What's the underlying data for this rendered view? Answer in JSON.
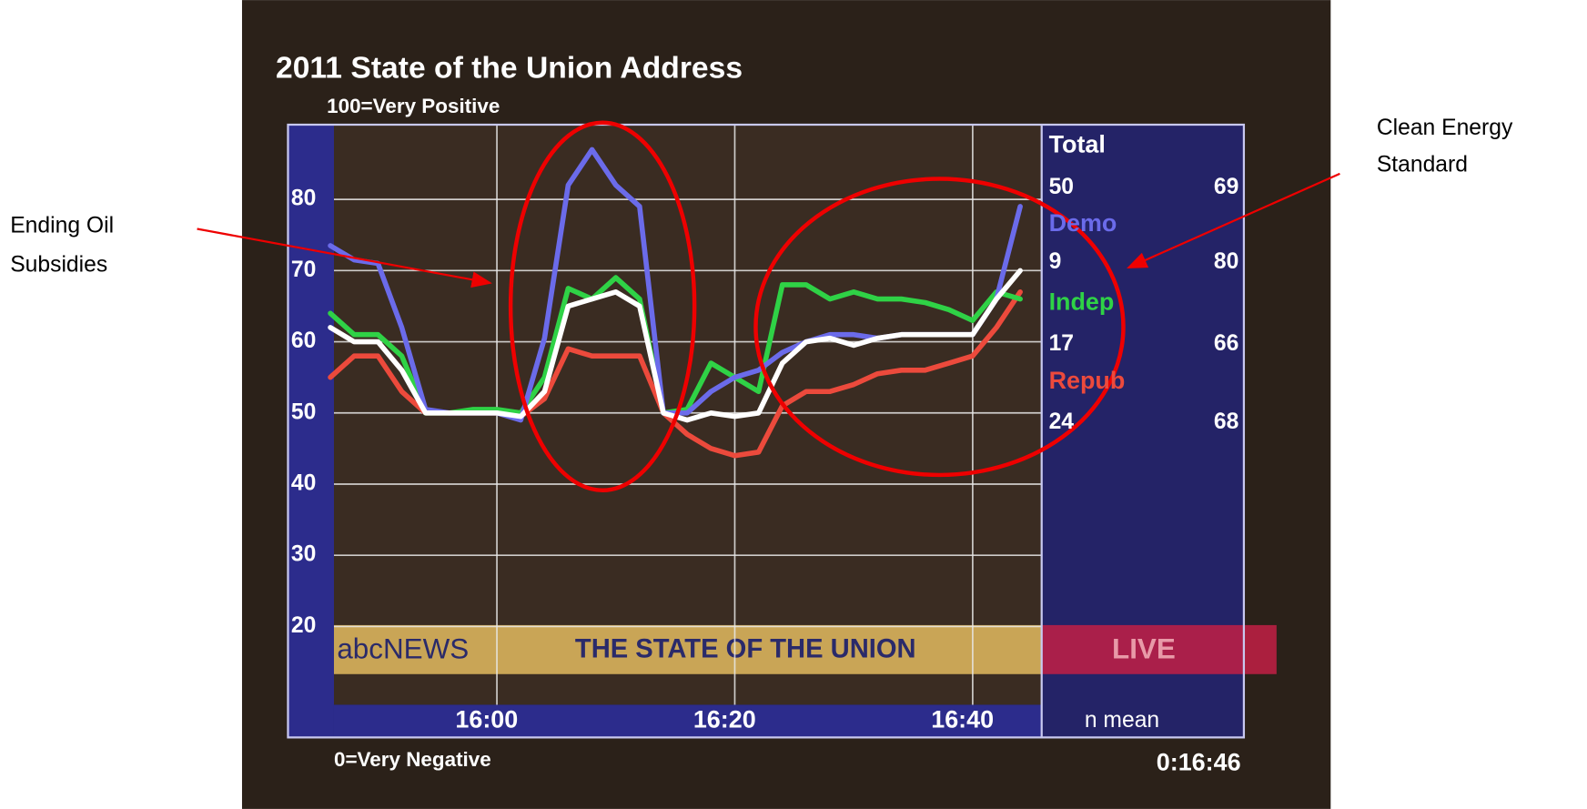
{
  "chart_data": {
    "type": "line",
    "title": "2011 State of the Union Address",
    "subtitle": "100=Very Positive",
    "bottom_label": "0=Very Negative",
    "timestamp": "0:16:46",
    "x": [
      946,
      948,
      950,
      952,
      954,
      956,
      958,
      960,
      962,
      964,
      966,
      968,
      970,
      972,
      974,
      976,
      978,
      980,
      982,
      984,
      986,
      988,
      990,
      992,
      994,
      996,
      998,
      1000,
      1002,
      1004
    ],
    "xlim": [
      946.3,
      1005.8
    ],
    "xticks": [
      {
        "value": 960,
        "label": "16:00"
      },
      {
        "value": 980,
        "label": "16:20"
      },
      {
        "value": 1000,
        "label": "16:40"
      }
    ],
    "ylim": [
      9,
      90.5
    ],
    "yticks": [
      20,
      30,
      40,
      50,
      60,
      70,
      80
    ],
    "grid": true,
    "series": [
      {
        "name": "Total",
        "color": "#ffffff",
        "values": [
          62,
          60,
          60,
          56,
          50,
          50,
          50,
          50,
          49.5,
          53,
          65,
          66,
          67,
          65,
          50,
          49,
          50,
          49.5,
          50,
          57,
          60,
          60.5,
          59.5,
          60.5,
          61,
          61,
          61,
          61,
          66,
          70
        ]
      },
      {
        "name": "Demo",
        "color": "#6b6bea",
        "values": [
          73.5,
          71.5,
          71,
          62,
          50.5,
          50,
          50,
          50,
          49,
          60.5,
          82,
          87,
          82,
          79,
          50,
          50,
          53,
          55,
          56,
          58.5,
          60,
          61,
          61,
          60.5,
          61,
          61,
          61,
          61,
          66,
          79
        ]
      },
      {
        "name": "Indep",
        "color": "#2fd246",
        "values": [
          64,
          61,
          61,
          58,
          50,
          50,
          50.5,
          50.5,
          50,
          55,
          67.5,
          66,
          69,
          66,
          50,
          50.5,
          57,
          55,
          53,
          68,
          68,
          66,
          67,
          66,
          66,
          65.5,
          64.5,
          63,
          67,
          66
        ]
      },
      {
        "name": "Repub",
        "color": "#ec4a3c",
        "values": [
          55,
          58,
          58,
          53,
          50,
          50,
          50,
          50,
          49.5,
          52,
          59,
          58,
          58,
          58,
          50,
          47,
          45,
          44,
          44.5,
          51,
          53,
          53,
          54,
          55.5,
          56,
          56,
          57,
          58,
          62,
          67
        ]
      }
    ],
    "panel": {
      "title": "Total",
      "columns": "n mean",
      "stats": [
        {
          "n": 50,
          "mean": 69
        },
        {
          "n": 9,
          "mean": 80
        },
        {
          "n": 17,
          "mean": 66
        },
        {
          "n": 24,
          "mean": 68
        }
      ]
    },
    "banner": {
      "network": "abcNEWS",
      "show": "THE STATE OF THE UNION",
      "live": "LIVE"
    },
    "annotations": [
      {
        "lines": [
          "Ending Oil",
          "Subsidies"
        ]
      },
      {
        "lines": [
          "Clean Energy",
          "Standard"
        ]
      }
    ]
  }
}
